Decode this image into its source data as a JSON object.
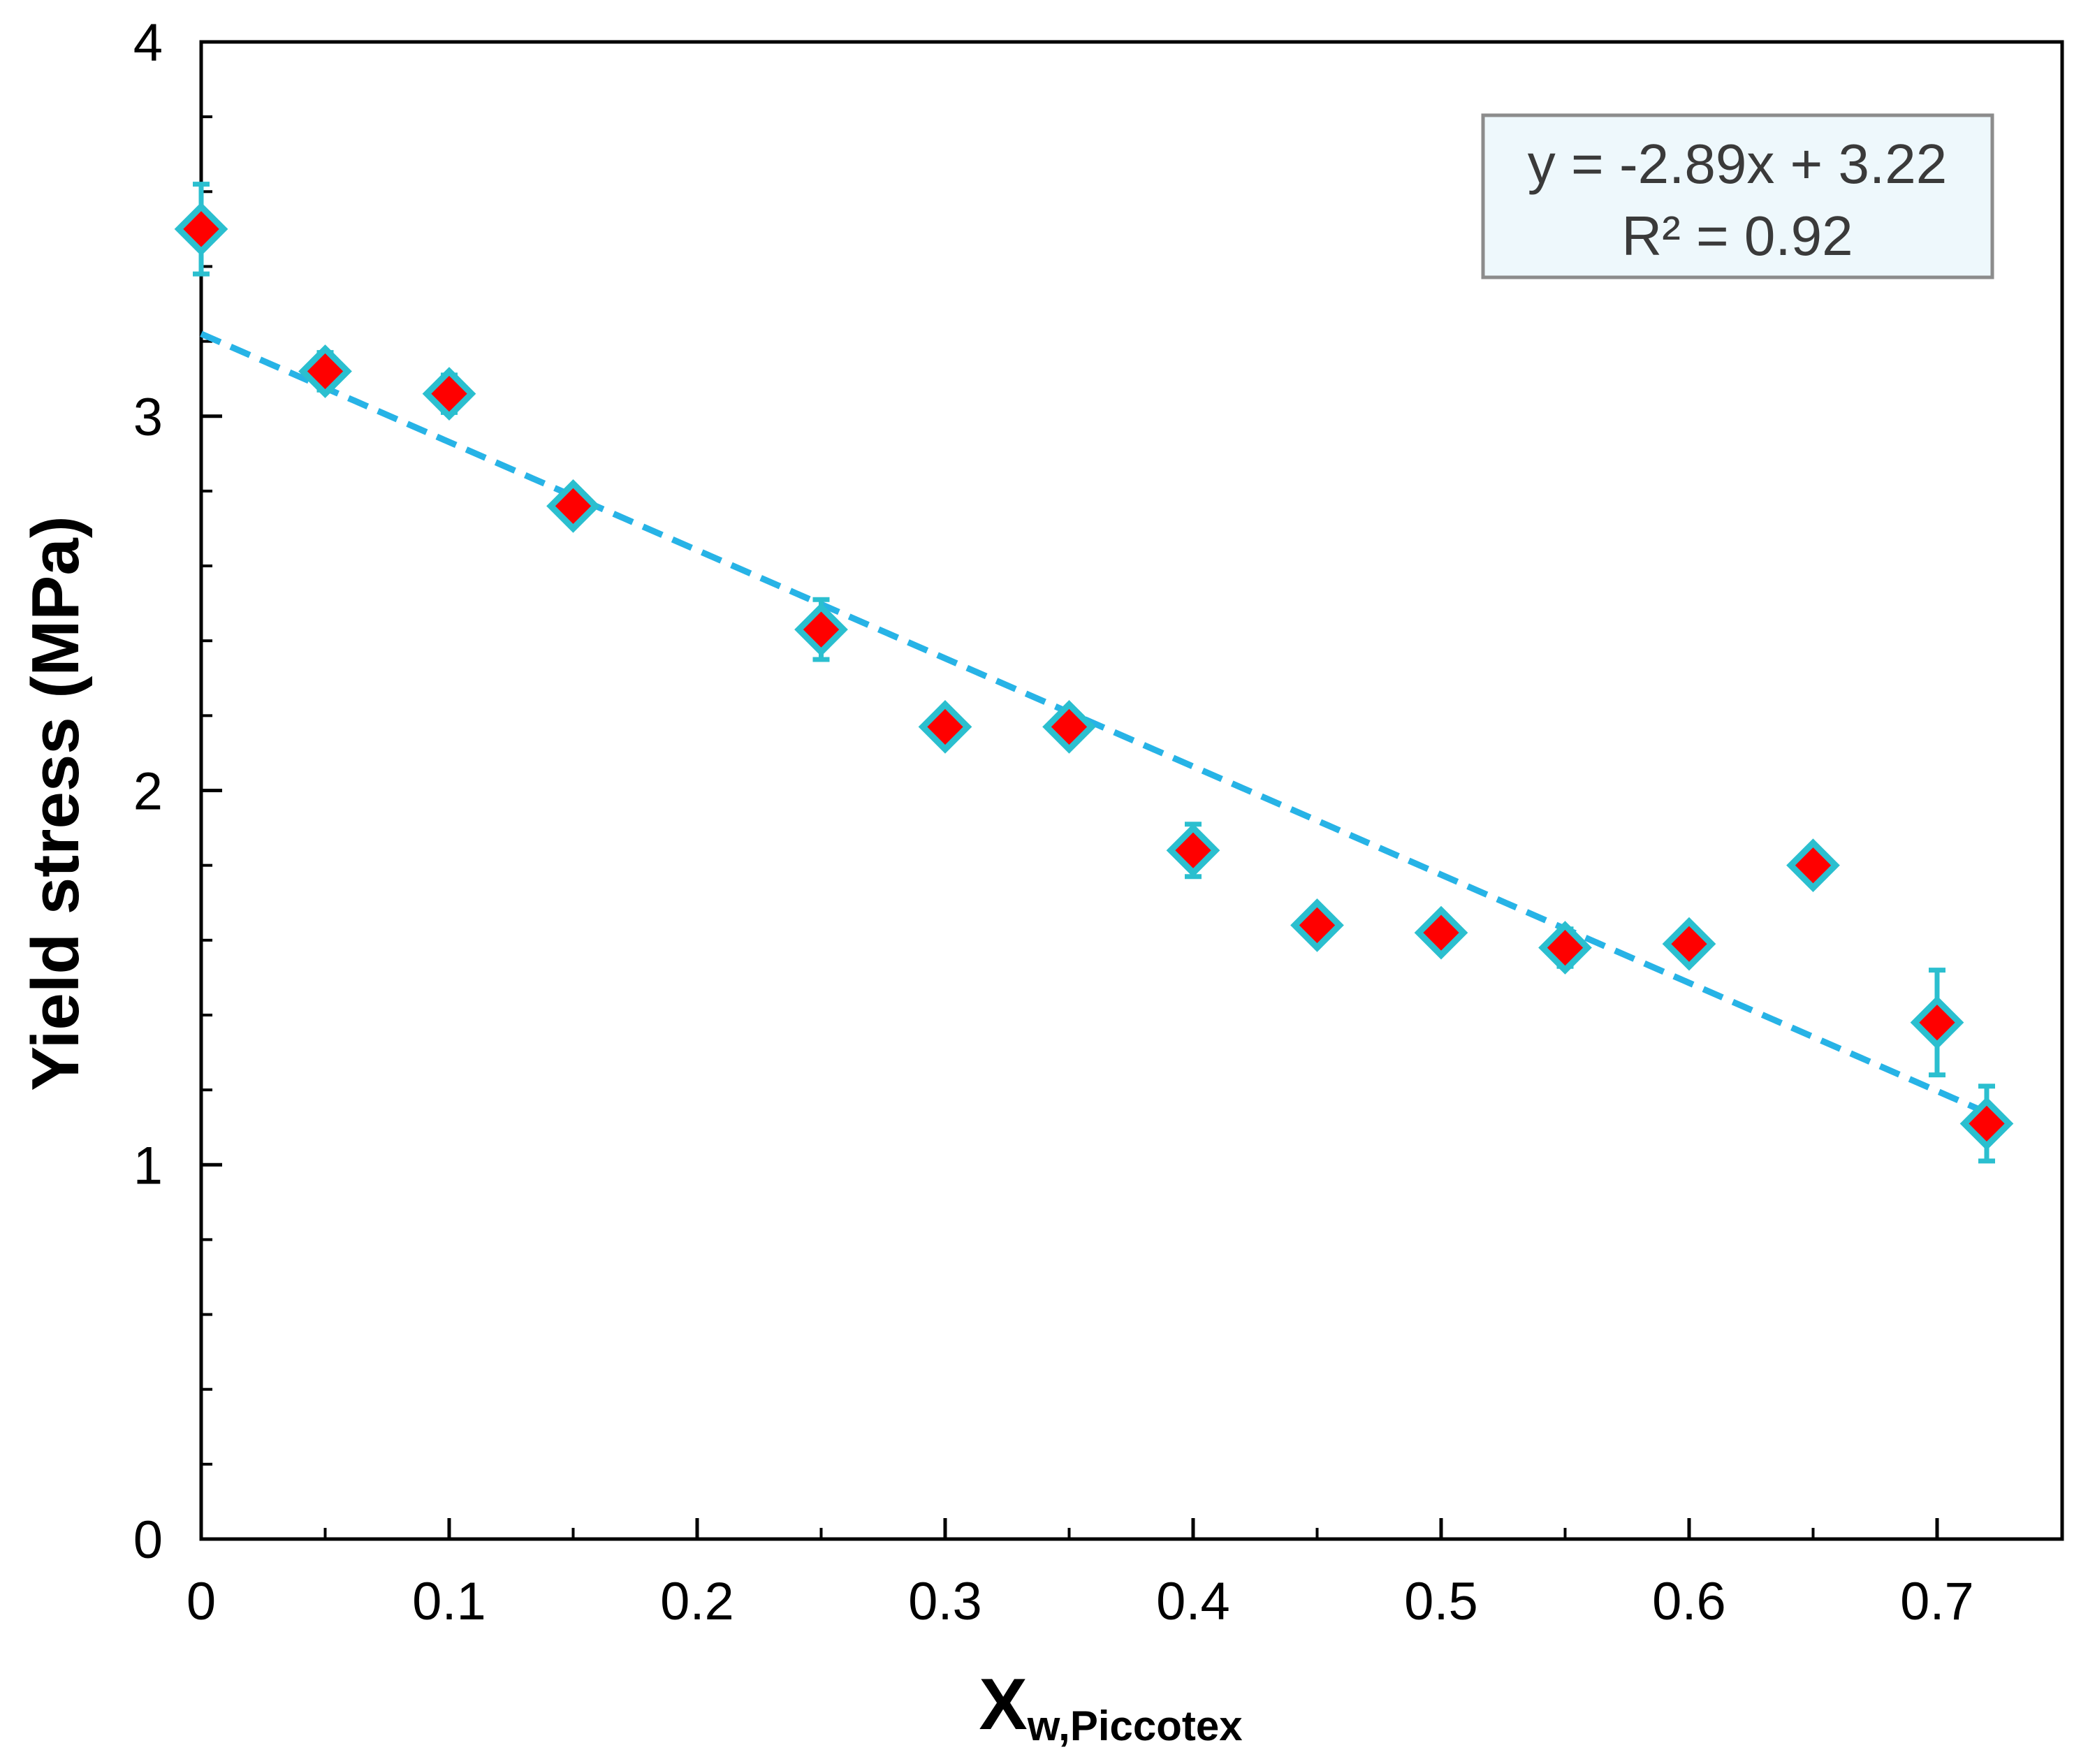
{
  "chart_data": {
    "type": "scatter",
    "title": "",
    "xlabel": "X",
    "xlabel_subscript": "w,Piccotex",
    "ylabel": "Yield stress (MPa)",
    "xlim": [
      0,
      0.75
    ],
    "ylim": [
      0,
      4
    ],
    "xticks": [
      0,
      0.1,
      0.2,
      0.3,
      0.4,
      0.5,
      0.6,
      0.7
    ],
    "xtick_labels": [
      "0",
      "0.1",
      "0.2",
      "0.3",
      "0.4",
      "0.5",
      "0.6",
      "0.7"
    ],
    "yticks": [
      0,
      1,
      2,
      3,
      4
    ],
    "ytick_labels": [
      "0",
      "1",
      "2",
      "3",
      "4"
    ],
    "y_minor_step": 0.2,
    "grid": false,
    "series": [
      {
        "name": "Yield stress",
        "marker": "diamond",
        "marker_color": "#ff0000",
        "edge_color": "#2bbfcf",
        "x": [
          0,
          0.05,
          0.1,
          0.15,
          0.25,
          0.3,
          0.35,
          0.4,
          0.45,
          0.5,
          0.55,
          0.6,
          0.65,
          0.7,
          0.72
        ],
        "y": [
          3.5,
          3.12,
          3.06,
          2.76,
          2.43,
          2.17,
          2.17,
          1.84,
          1.64,
          1.62,
          1.58,
          1.59,
          1.8,
          1.38,
          1.11
        ],
        "yerr": [
          0.12,
          0.05,
          0.05,
          0.04,
          0.08,
          0.03,
          0.03,
          0.07,
          0.03,
          0.03,
          0.05,
          0.04,
          0.03,
          0.14,
          0.1
        ]
      }
    ],
    "trendline": {
      "slope": -2.89,
      "intercept": 3.22,
      "x_range": [
        0,
        0.72
      ],
      "color": "#27b3e6",
      "style": "dashed",
      "equation": "y = -2.89x + 3.22",
      "r_squared": "R² = 0.92"
    },
    "legend": "none",
    "annotation_position": "top-right"
  }
}
